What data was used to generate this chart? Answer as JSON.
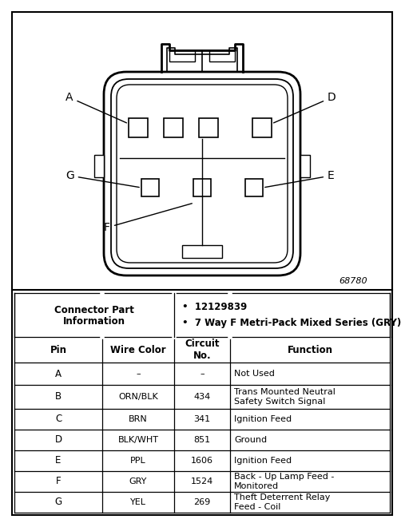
{
  "connector_part_info": [
    "12129839",
    "7 Way F Metri-Pack Mixed Series (GRY)"
  ],
  "diagram_label": "68780",
  "table_headers": [
    "Pin",
    "Wire Color",
    "Circuit\nNo.",
    "Function"
  ],
  "table_rows": [
    [
      "A",
      "–",
      "–",
      "Not Used"
    ],
    [
      "B",
      "ORN/BLK",
      "434",
      "Trans Mounted Neutral\nSafety Switch Signal"
    ],
    [
      "C",
      "BRN",
      "341",
      "Ignition Feed"
    ],
    [
      "D",
      "BLK/WHT",
      "851",
      "Ground"
    ],
    [
      "E",
      "PPL",
      "1606",
      "Ignition Feed"
    ],
    [
      "F",
      "GRY",
      "1524",
      "Back - Up Lamp Feed -\nMonitored"
    ],
    [
      "G",
      "YEL",
      "269",
      "Theft Deterrent Relay\nFeed - Coil"
    ]
  ],
  "bg_color": "#ffffff",
  "border_color": "#000000"
}
